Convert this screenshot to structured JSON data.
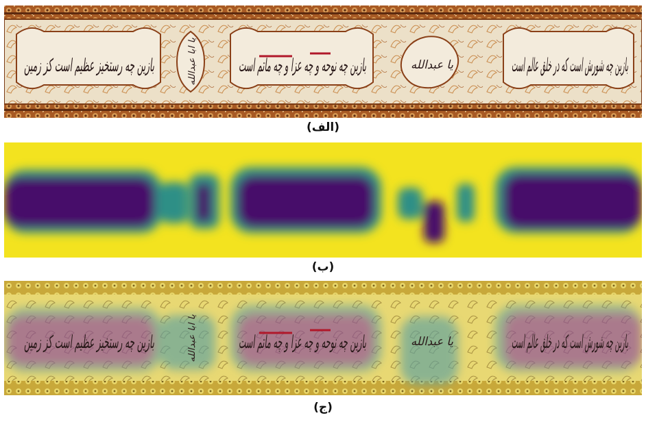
{
  "figure": {
    "captions": {
      "a": "(الف)",
      "b": "(ب)",
      "c": "(ج)"
    },
    "banner_texts": [
      "بازین چه شورش است که در خلق عالم است",
      "بازین چه نوحه و چه عزا و چه ماتم است",
      "بازین چه رستخیز عظیم است کز زمین"
    ],
    "medallion_texts": [
      "یا عبدالله",
      "یا ابا عبدالله"
    ]
  },
  "colors": {
    "frame_brown": "#9a4a1c",
    "frame_dark": "#5c2a10",
    "parchment": "#f2e9d8",
    "ink": "#2a1a1a",
    "ink_red": "#b0182a",
    "heat_high": "#44106a",
    "heat_mid": "#2a8a8a",
    "heat_low": "#f2e21e"
  }
}
